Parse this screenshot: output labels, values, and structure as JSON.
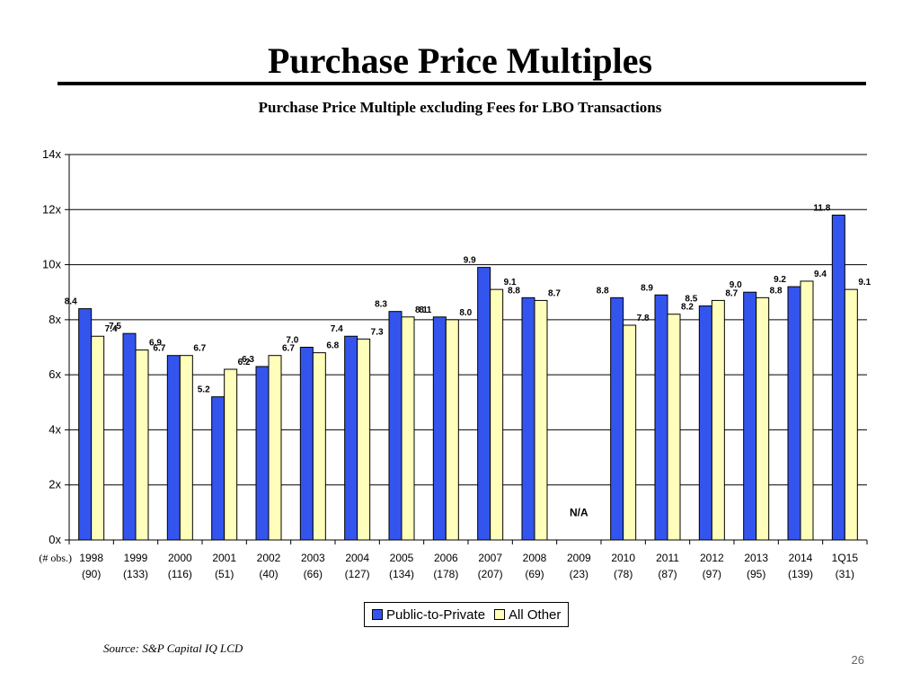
{
  "slide": {
    "title": "Purchase Price Multiples",
    "source": "Source: S&P Capital IQ LCD",
    "page_number": "26"
  },
  "chart_data": {
    "type": "bar",
    "title": "Purchase Price Multiple excluding Fees for LBO Transactions",
    "xlabel": "",
    "ylabel": "",
    "ylim": [
      0,
      14
    ],
    "yticks": [
      "0x",
      "2x",
      "4x",
      "6x",
      "8x",
      "10x",
      "12x",
      "14x"
    ],
    "grid": true,
    "legend_placement": "bottom",
    "obs_label": "(# obs.)",
    "na_label": "N/A",
    "categories": [
      "1998",
      "1999",
      "2000",
      "2001",
      "2002",
      "2003",
      "2004",
      "2005",
      "2006",
      "2007",
      "2008",
      "2009",
      "2010",
      "2011",
      "2012",
      "2013",
      "2014",
      "1Q15"
    ],
    "observations": [
      "(90)",
      "(133)",
      "(116)",
      "(51)",
      "(40)",
      "(66)",
      "(127)",
      "(134)",
      "(178)",
      "(207)",
      "(69)",
      "(23)",
      "(78)",
      "(87)",
      "(97)",
      "(95)",
      "(139)",
      "(31)"
    ],
    "series": [
      {
        "name": "Public-to-Private",
        "color": "#3355ee",
        "values": [
          8.4,
          7.5,
          6.7,
          5.2,
          6.3,
          7.0,
          7.4,
          8.3,
          8.1,
          9.9,
          8.8,
          null,
          8.8,
          8.9,
          8.5,
          9.0,
          9.2,
          11.8
        ],
        "labels": [
          "8.4",
          "7.5",
          "6.7",
          "5.2",
          "6.3",
          "7.0",
          "7.4",
          "8.3",
          "8.1",
          "9.9",
          "8.8",
          null,
          "8.8",
          "8.9",
          "8.5",
          "9.0",
          "9.2",
          "11.8"
        ]
      },
      {
        "name": "All Other",
        "color": "#ffffbb",
        "values": [
          7.4,
          6.9,
          6.7,
          6.2,
          6.7,
          6.8,
          7.3,
          8.1,
          8.0,
          9.1,
          8.7,
          null,
          7.8,
          8.2,
          8.7,
          8.8,
          9.4,
          9.1
        ],
        "labels": [
          "7.4",
          "6.9",
          "6.7",
          "6.2",
          "6.7",
          "6.8",
          "7.3",
          "8.1",
          "8.0",
          "9.1",
          "8.7",
          null,
          "7.8",
          "8.2",
          "8.7",
          "8.8",
          "9.4",
          "9.1"
        ]
      }
    ]
  }
}
